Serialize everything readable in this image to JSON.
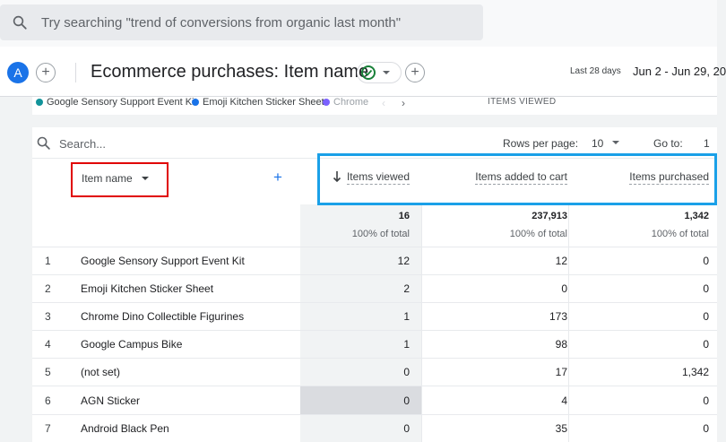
{
  "global_search": {
    "placeholder": "Try searching \"trend of conversions from organic last month\""
  },
  "header": {
    "avatar_letter": "A",
    "report_title": "Ecommerce purchases: Item name",
    "date_label": "Last 28 days",
    "date_range": "Jun 2 - Jun 29, 20"
  },
  "legend": {
    "items": [
      {
        "label": "Google Sensory Support Event Kit",
        "color": "#12939a"
      },
      {
        "label": "Emoji Kitchen Sticker Sheet",
        "color": "#1a73e8"
      },
      {
        "label": "Chrome",
        "color": "#7b61ff"
      }
    ],
    "prev": "‹",
    "next": "›",
    "chart_title": "ITEMS VIEWED"
  },
  "toolbar": {
    "search_placeholder": "Search...",
    "rows_per_page_label": "Rows per page:",
    "rows_per_page_value": "10",
    "goto_label": "Go to:",
    "goto_value": "1"
  },
  "table": {
    "dimension_header": "Item name",
    "add_dimension": "+",
    "columns": [
      "Items viewed",
      "Items added to cart",
      "Items purchased"
    ],
    "totals": [
      "16",
      "237,913",
      "1,342"
    ],
    "totals_pct": [
      "100% of total",
      "100% of total",
      "100% of total"
    ],
    "rows": [
      {
        "idx": "1",
        "name": "Google Sensory Support Event Kit",
        "viewed": "12",
        "added": "12",
        "purchased": "0"
      },
      {
        "idx": "2",
        "name": "Emoji Kitchen Sticker Sheet",
        "viewed": "2",
        "added": "0",
        "purchased": "0"
      },
      {
        "idx": "3",
        "name": "Chrome Dino Collectible Figurines",
        "viewed": "1",
        "added": "173",
        "purchased": "0"
      },
      {
        "idx": "4",
        "name": "Google Campus Bike",
        "viewed": "1",
        "added": "98",
        "purchased": "0"
      },
      {
        "idx": "5",
        "name": "(not set)",
        "viewed": "0",
        "added": "17",
        "purchased": "1,342"
      },
      {
        "idx": "6",
        "name": "AGN Sticker",
        "viewed": "0",
        "added": "4",
        "purchased": "0"
      },
      {
        "idx": "7",
        "name": "Android Black Pen",
        "viewed": "0",
        "added": "35",
        "purchased": "0"
      }
    ]
  },
  "annotations": {
    "red_box_color": "#e00000",
    "blue_box_color": "#1aa0e8"
  }
}
